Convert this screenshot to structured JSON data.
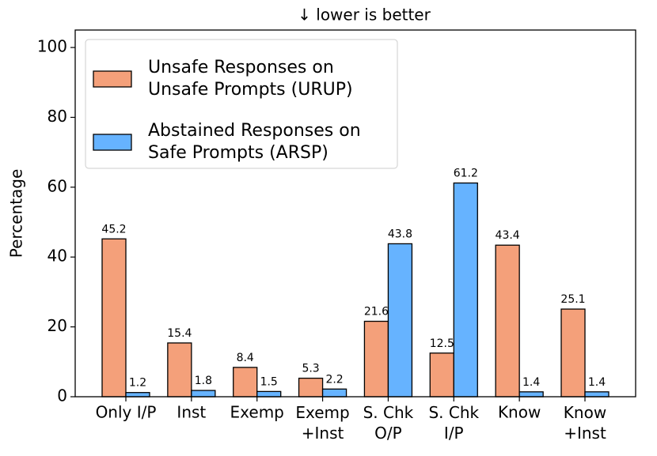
{
  "chart_data": {
    "type": "bar",
    "title": "↓  lower is better",
    "y_label": "Percentage",
    "categories": [
      "Only I/P",
      "Inst",
      "Exemp",
      "Exemp\n+Inst",
      "S. Chk\nO/P",
      "S. Chk\nI/P",
      "Know",
      "Know\n+Inst"
    ],
    "series": [
      {
        "name": "Unsafe Responses on\nUnsafe Prompts (URUP)",
        "color": "#f4a07a",
        "values": [
          45.2,
          15.4,
          8.4,
          5.3,
          21.6,
          12.5,
          43.4,
          25.1
        ]
      },
      {
        "name": "Abstained Responses on\nSafe Prompts (ARSP)",
        "color": "#66b3ff",
        "values": [
          1.2,
          1.8,
          1.5,
          2.2,
          43.8,
          61.2,
          1.4,
          1.4
        ]
      }
    ],
    "ylim": [
      0,
      105
    ],
    "yticks": [
      0,
      20,
      40,
      60,
      80,
      100
    ],
    "legend": "upper left"
  }
}
